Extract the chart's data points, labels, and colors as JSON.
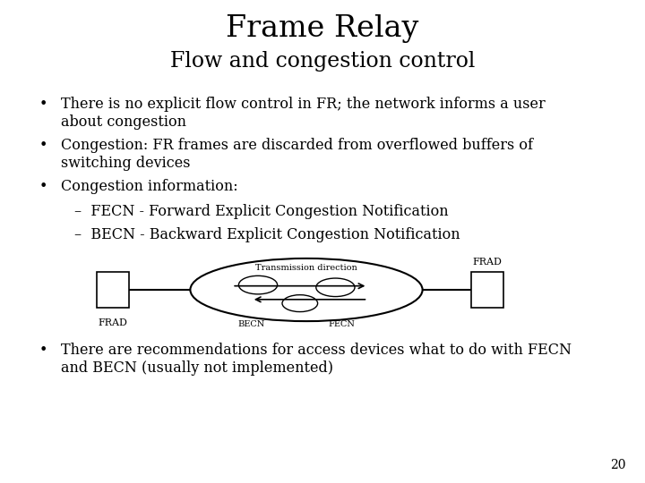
{
  "title": "Frame Relay",
  "subtitle": "Flow and congestion control",
  "bullet1": "There is no explicit flow control in FR; the network informs a user\nabout congestion",
  "bullet2": "Congestion: FR frames are discarded from overflowed buffers of\nswitching devices",
  "bullet3": "Congestion information:",
  "sub1": "–  FECN - Forward Explicit Congestion Notification",
  "sub2": "–  BECN - Backward Explicit Congestion Notification",
  "last_bullet": "There are recommendations for access devices what to do with FECN\nand BECN (usually not implemented)",
  "page_number": "20",
  "background_color": "#ffffff",
  "text_color": "#000000",
  "title_fontsize": 24,
  "subtitle_fontsize": 17,
  "body_fontsize": 11.5,
  "small_fontsize": 7,
  "frad_fontsize": 8
}
